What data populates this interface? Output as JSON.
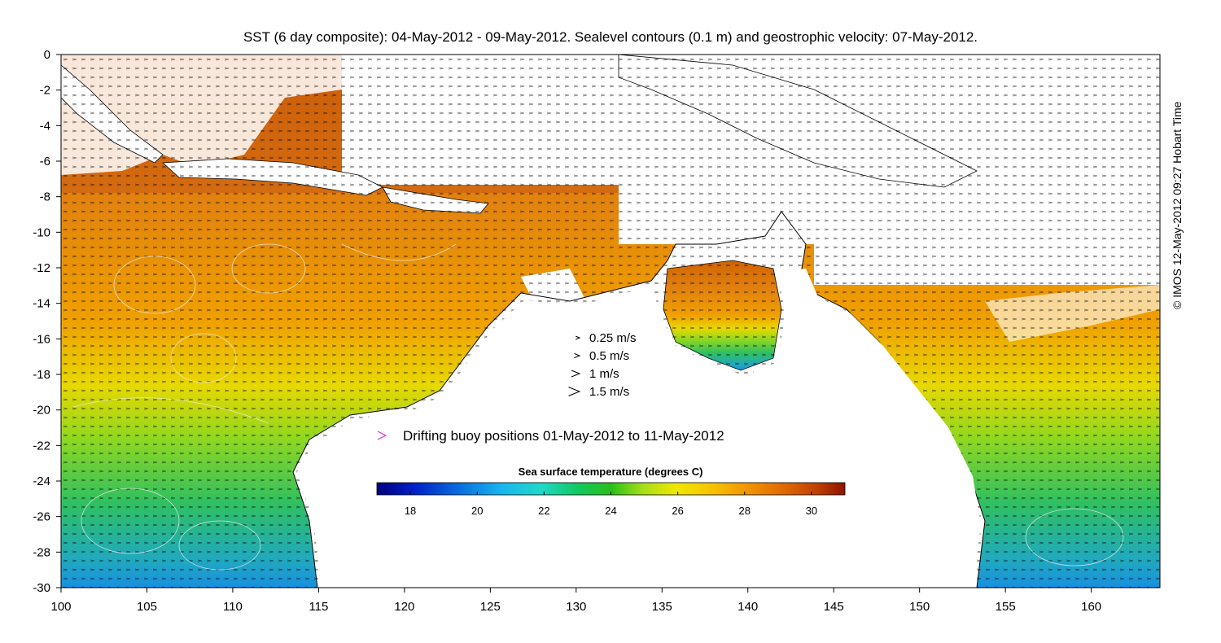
{
  "title": "SST (6 day composite): 04-May-2012 - 09-May-2012. Sealevel contours (0.1 m) and geostrophic velocity: 07-May-2012.",
  "credit": "© IMOS 12-May-2012 09:27 Hobart Time",
  "axes": {
    "x_ticks": [
      "100",
      "105",
      "110",
      "115",
      "120",
      "125",
      "130",
      "135",
      "140",
      "145",
      "150",
      "155",
      "160"
    ],
    "y_ticks": [
      "0",
      "-2",
      "-4",
      "-6",
      "-8",
      "-10",
      "-12",
      "-14",
      "-16",
      "-18",
      "-20",
      "-22",
      "-24",
      "-26",
      "-28",
      "-30"
    ]
  },
  "velocity_legend": [
    {
      "label": "0.25 m/s",
      "speed": 0.25
    },
    {
      "label": "0.5 m/s",
      "speed": 0.5
    },
    {
      "label": "1 m/s",
      "speed": 1
    },
    {
      "label": "1.5 m/s",
      "speed": 1.5
    }
  ],
  "buoy_legend": {
    "label": "Drifting buoy positions 01-May-2012 to 11-May-2012",
    "color": "#e030e0"
  },
  "colorbar": {
    "title": "Sea surface temperature (degrees C)",
    "range": [
      17,
      31
    ],
    "ticks": [
      "18",
      "20",
      "22",
      "24",
      "26",
      "28",
      "30"
    ],
    "colors": [
      "#00007a",
      "#0020c8",
      "#0a70e0",
      "#18b8f0",
      "#20d8c8",
      "#10c860",
      "#28c018",
      "#a8e018",
      "#f0e800",
      "#f8c000",
      "#f09000",
      "#e06800",
      "#c04000",
      "#901000"
    ]
  },
  "map_colors": {
    "land": "#ffffff",
    "cloud": "#ffffff",
    "coast": "#000000",
    "contour": "#f0f0f0"
  }
}
